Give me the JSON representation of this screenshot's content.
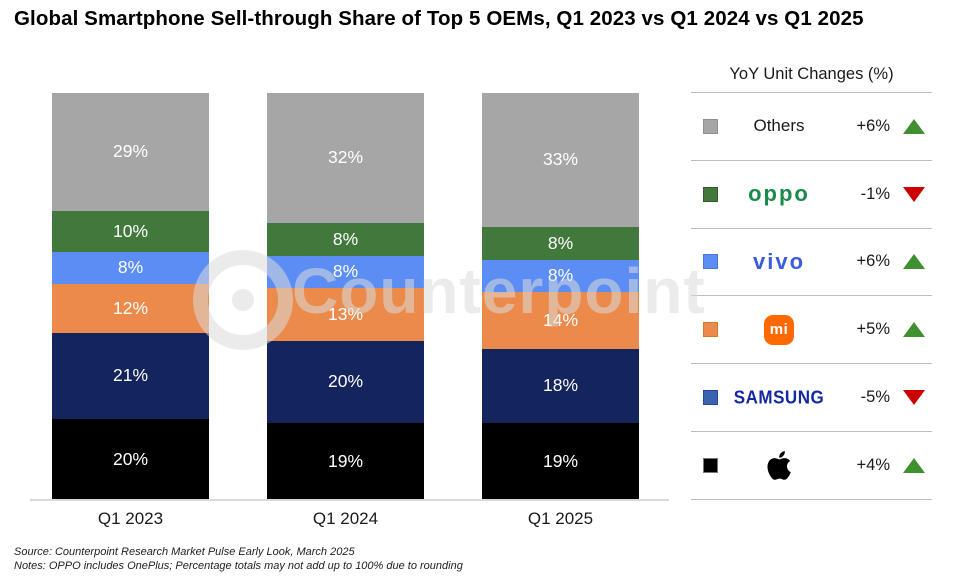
{
  "title": "Global Smartphone Sell-through Share of Top 5 OEMs, Q1 2023 vs Q1 2024 vs Q1 2025",
  "watermark_text": "Counterpoint",
  "chart_data": {
    "type": "stacked-bar",
    "title": "Global Smartphone Sell-through Share of Top 5 OEMs, Q1 2023 vs Q1 2024 vs Q1 2025",
    "categories": [
      "Q1 2023",
      "Q1 2024",
      "Q1 2025"
    ],
    "unit": "%",
    "ylim": [
      0,
      100
    ],
    "stack_order": "bottom-to-top",
    "series": [
      {
        "name": "Apple",
        "color": "#000000",
        "values": [
          20,
          19,
          19
        ]
      },
      {
        "name": "Samsung",
        "color": "#14245C",
        "values": [
          21,
          20,
          18
        ]
      },
      {
        "name": "Xiaomi",
        "color": "#EC8A4B",
        "values": [
          12,
          13,
          14
        ]
      },
      {
        "name": "vivo",
        "color": "#5B8DF4",
        "values": [
          8,
          8,
          8
        ]
      },
      {
        "name": "OPPO",
        "color": "#41793D",
        "values": [
          10,
          8,
          8
        ]
      },
      {
        "name": "Others",
        "color": "#A6A6A6",
        "values": [
          29,
          32,
          33
        ]
      }
    ],
    "legend_position": "right",
    "grid": false
  },
  "legend": {
    "header": "YoY Unit Changes (%)",
    "up_color": "#3F9130",
    "down_color": "#CC0000",
    "rows": [
      {
        "brand": "Others",
        "logo": "others",
        "logo_text": "Others",
        "swatch": "#A6A6A6",
        "swatch_border": "#8F8F8F",
        "change": "+6%",
        "direction": "up"
      },
      {
        "brand": "OPPO",
        "logo": "oppo",
        "logo_text": "oppo",
        "swatch": "#41793D",
        "swatch_border": "#2F5C2C",
        "change": "-1%",
        "direction": "down"
      },
      {
        "brand": "vivo",
        "logo": "vivo",
        "logo_text": "vivo",
        "swatch": "#5B8DF4",
        "swatch_border": "#4478E0",
        "change": "+6%",
        "direction": "up"
      },
      {
        "brand": "Xiaomi",
        "logo": "mi",
        "logo_text": "mi",
        "swatch": "#EC8A4B",
        "swatch_border": "#D57835",
        "change": "+5%",
        "direction": "up"
      },
      {
        "brand": "Samsung",
        "logo": "samsung",
        "logo_text": "SAMSUNG",
        "swatch": "#3A63AE",
        "swatch_border": "#2746A8",
        "change": "-5%",
        "direction": "down"
      },
      {
        "brand": "Apple",
        "logo": "apple",
        "logo_text": "",
        "swatch": "#000000",
        "swatch_border": "#777777",
        "change": "+4%",
        "direction": "up"
      }
    ]
  },
  "footer": {
    "source": "Source: Counterpoint Research Market Pulse Early Look, March 2025",
    "notes": "Notes: OPPO includes OnePlus; Percentage totals may not add up to 100% due to rounding"
  }
}
